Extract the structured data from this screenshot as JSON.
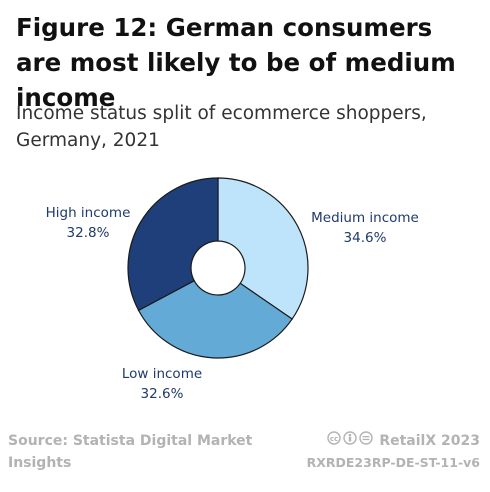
{
  "header": {
    "title": "Figure 12: German consumers are most likely to be of medium income",
    "subtitle": "Income status split of ecommerce shoppers, Germany, 2021"
  },
  "footer": {
    "source": "Source: Statista Digital Market Insights",
    "brand": "RetailX 2023",
    "code": "RXRDE23RP-DE-ST-11-v6",
    "license_icon": "creative-commons-icons"
  },
  "chart_data": {
    "type": "pie",
    "donut": true,
    "title": "Figure 12: German consumers are most likely to be of medium income",
    "subtitle": "Income status split of ecommerce shoppers, Germany, 2021",
    "unit": "%",
    "legend": "none",
    "slices": [
      {
        "label": "Medium income",
        "value": 34.6,
        "display": "34.6%",
        "color": "#bde4fb"
      },
      {
        "label": "Low income",
        "value": 32.6,
        "display": "32.6%",
        "color": "#63aad6"
      },
      {
        "label": "High income",
        "value": 32.8,
        "display": "32.8%",
        "color": "#1f3f7a"
      }
    ]
  }
}
